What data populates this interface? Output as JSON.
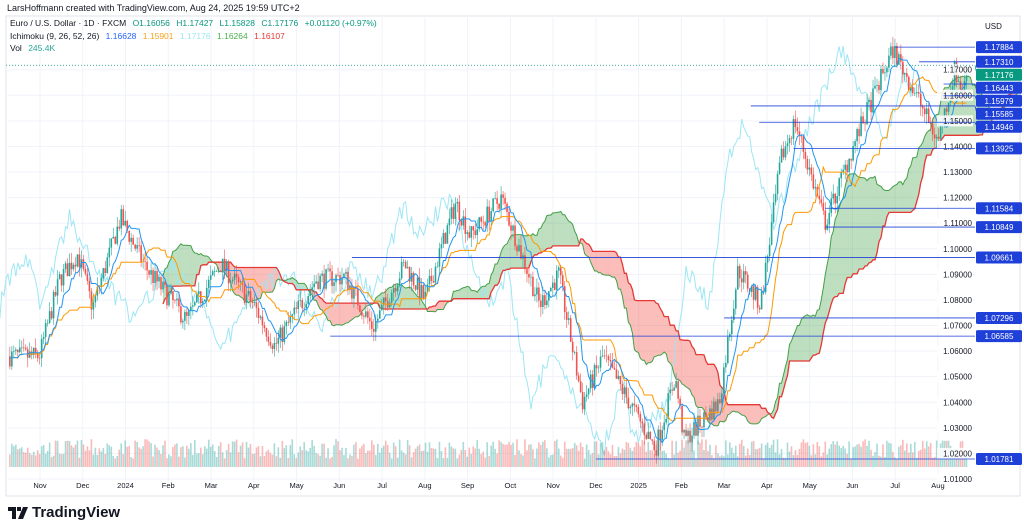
{
  "credit": "LarsHoffmann created with TradingView.com, Aug 24, 2025 19:59 UTC+2",
  "legend": {
    "symbol": "Euro / U.S. Dollar · 1D · FXCM",
    "open": "O1.16056",
    "high": "H1.17427",
    "low": "L1.15828",
    "close": "C1.17176",
    "change": "+0.01120 (+0.97%)",
    "ichimoku_label": "Ichimoku (9, 26, 52, 26)",
    "ichimoku_values": [
      "1.16628",
      "1.15901",
      "1.17176",
      "1.16264",
      "1.16107"
    ],
    "vol_label": "Vol",
    "vol_value": "245.4K"
  },
  "currency": "USD",
  "logo_text": "TradingView",
  "colors": {
    "up": "#26a69a",
    "down": "#ef5350",
    "tenkan": "#2196f3",
    "kijun": "#ff9800",
    "chikou": "#9ee6f4",
    "spanA": "#43a047",
    "spanB": "#e53935",
    "level": "#1e40d8",
    "current": "#089981"
  },
  "chart_data": {
    "type": "candlestick",
    "title": "Euro / U.S. Dollar · 1D · FXCM",
    "ylim": [
      1.005,
      1.185
    ],
    "y_ticks": [
      "1.01000",
      "1.02000",
      "1.03000",
      "1.04000",
      "1.05000",
      "1.06000",
      "1.07000",
      "1.08000",
      "1.09000",
      "1.10000",
      "1.11000",
      "1.12000",
      "1.13000",
      "1.14000",
      "1.15000",
      "1.16000",
      "1.17000"
    ],
    "x_ticks": [
      {
        "label": "Nov",
        "date": "2023-11-01"
      },
      {
        "label": "Dec",
        "date": "2023-12-01"
      },
      {
        "label": "2024",
        "date": "2024-01-01"
      },
      {
        "label": "Feb",
        "date": "2024-02-01"
      },
      {
        "label": "Mar",
        "date": "2024-03-01"
      },
      {
        "label": "Apr",
        "date": "2024-04-01"
      },
      {
        "label": "May",
        "date": "2024-05-01"
      },
      {
        "label": "Jun",
        "date": "2024-06-01"
      },
      {
        "label": "Jul",
        "date": "2024-07-01"
      },
      {
        "label": "Aug",
        "date": "2024-08-01"
      },
      {
        "label": "Sep",
        "date": "2024-09-01"
      },
      {
        "label": "Oct",
        "date": "2024-10-01"
      },
      {
        "label": "Nov",
        "date": "2024-11-01"
      },
      {
        "label": "Dec",
        "date": "2024-12-01"
      },
      {
        "label": "2025",
        "date": "2025-01-01"
      },
      {
        "label": "Feb",
        "date": "2025-02-01"
      },
      {
        "label": "Mar",
        "date": "2025-03-01"
      },
      {
        "label": "Apr",
        "date": "2025-04-01"
      },
      {
        "label": "May",
        "date": "2025-05-01"
      },
      {
        "label": "Jun",
        "date": "2025-06-01"
      },
      {
        "label": "Jul",
        "date": "2025-07-01"
      },
      {
        "label": "Aug",
        "date": "2025-08-01"
      }
    ],
    "close_path": [
      {
        "date": "2023-10-10",
        "price": 1.058
      },
      {
        "date": "2023-10-31",
        "price": 1.058
      },
      {
        "date": "2023-11-15",
        "price": 1.088
      },
      {
        "date": "2023-11-28",
        "price": 1.098
      },
      {
        "date": "2023-12-08",
        "price": 1.077
      },
      {
        "date": "2023-12-28",
        "price": 1.112
      },
      {
        "date": "2024-01-15",
        "price": 1.093
      },
      {
        "date": "2024-02-14",
        "price": 1.072
      },
      {
        "date": "2024-03-08",
        "price": 1.094
      },
      {
        "date": "2024-04-01",
        "price": 1.078
      },
      {
        "date": "2024-04-16",
        "price": 1.062
      },
      {
        "date": "2024-05-15",
        "price": 1.088
      },
      {
        "date": "2024-06-05",
        "price": 1.089
      },
      {
        "date": "2024-06-25",
        "price": 1.069
      },
      {
        "date": "2024-07-17",
        "price": 1.094
      },
      {
        "date": "2024-08-01",
        "price": 1.08
      },
      {
        "date": "2024-08-23",
        "price": 1.118
      },
      {
        "date": "2024-09-03",
        "price": 1.105
      },
      {
        "date": "2024-09-25",
        "price": 1.12
      },
      {
        "date": "2024-10-22",
        "price": 1.078
      },
      {
        "date": "2024-11-05",
        "price": 1.09
      },
      {
        "date": "2024-11-22",
        "price": 1.04
      },
      {
        "date": "2024-12-06",
        "price": 1.058
      },
      {
        "date": "2025-01-13",
        "price": 1.022
      },
      {
        "date": "2025-01-27",
        "price": 1.05
      },
      {
        "date": "2025-02-03",
        "price": 1.025
      },
      {
        "date": "2025-02-28",
        "price": 1.04
      },
      {
        "date": "2025-03-11",
        "price": 1.092
      },
      {
        "date": "2025-03-27",
        "price": 1.078
      },
      {
        "date": "2025-04-11",
        "price": 1.135
      },
      {
        "date": "2025-04-21",
        "price": 1.15
      },
      {
        "date": "2025-05-12",
        "price": 1.11
      },
      {
        "date": "2025-06-05",
        "price": 1.145
      },
      {
        "date": "2025-06-30",
        "price": 1.178
      },
      {
        "date": "2025-07-16",
        "price": 1.16
      },
      {
        "date": "2025-08-01",
        "price": 1.142
      },
      {
        "date": "2025-08-13",
        "price": 1.17
      },
      {
        "date": "2025-08-19",
        "price": 1.16
      },
      {
        "date": "2025-08-22",
        "price": 1.17176
      }
    ],
    "levels": [
      {
        "price": 1.17884,
        "label": "1.17884",
        "start": "2025-07-01"
      },
      {
        "price": 1.1731,
        "label": "1.17310",
        "start": "2025-07-18"
      },
      {
        "price": 1.16443,
        "label": "1.16443",
        "start": "2025-08-05"
      },
      {
        "price": 1.15979,
        "label": "1.15979",
        "start": "2025-08-05"
      },
      {
        "price": 1.15585,
        "label": "1.15585",
        "start": "2025-03-20"
      },
      {
        "price": 1.14946,
        "label": "1.14946",
        "start": "2025-03-26"
      },
      {
        "price": 1.13925,
        "label": "1.13925",
        "start": "2025-04-20"
      },
      {
        "price": 1.11584,
        "label": "1.11584",
        "start": "2025-05-12"
      },
      {
        "price": 1.10849,
        "label": "1.10849",
        "start": "2025-05-12"
      },
      {
        "price": 1.09661,
        "label": "1.09661",
        "start": "2024-06-10"
      },
      {
        "price": 1.07296,
        "label": "1.07296",
        "start": "2025-03-01"
      },
      {
        "price": 1.06585,
        "label": "1.06585",
        "start": "2024-05-25"
      },
      {
        "price": 1.01781,
        "label": "1.01781",
        "start": "2024-12-01"
      }
    ],
    "current": {
      "price": 1.17176,
      "label": "1.17176"
    }
  }
}
